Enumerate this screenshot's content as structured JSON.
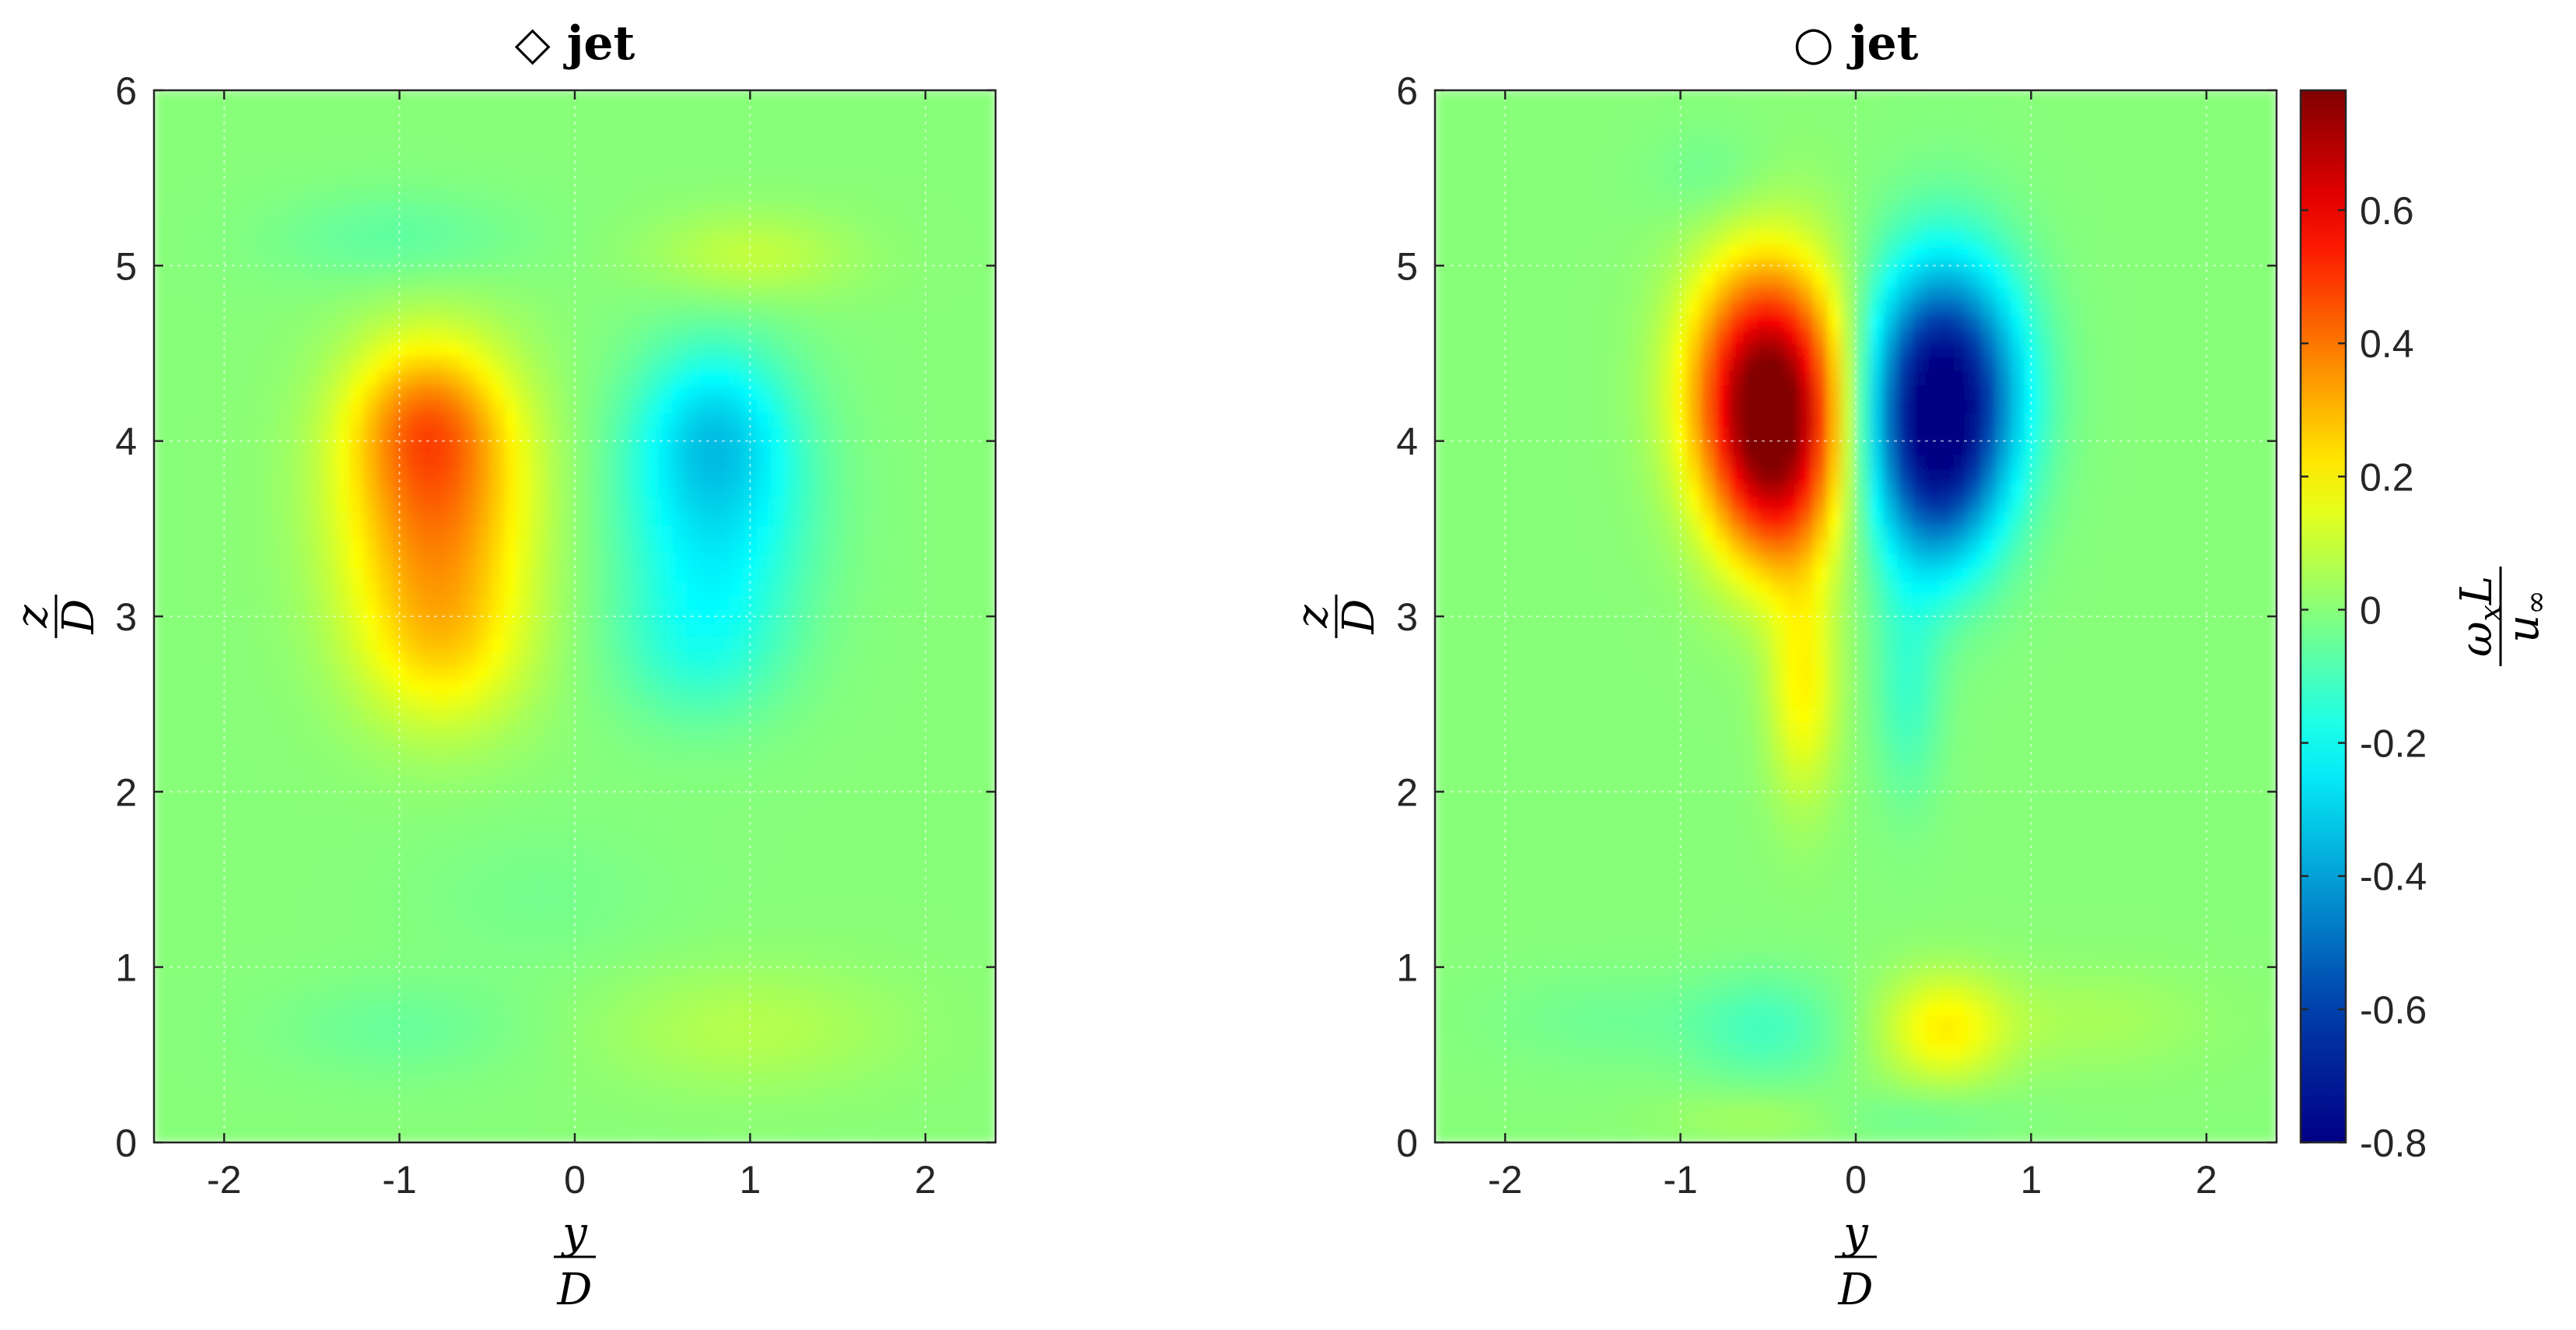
{
  "chart_data": [
    {
      "type": "heatmap",
      "title": "◇ jet",
      "xlabel": {
        "num": "y",
        "den": "D"
      },
      "ylabel": {
        "num": "z",
        "den": "D"
      },
      "xlim": [
        -2.4,
        2.4
      ],
      "ylim": [
        0,
        6
      ],
      "x_ticks": [
        "-2",
        "-1",
        "0",
        "1",
        "2"
      ],
      "y_ticks": [
        "0",
        "1",
        "2",
        "3",
        "4",
        "5",
        "6"
      ],
      "grid": true,
      "features": [
        {
          "y": -0.8,
          "z": 3.65,
          "value": 0.38,
          "sy": 0.38,
          "sz": 0.55
        },
        {
          "y": -0.85,
          "z": 4.15,
          "value": 0.2,
          "sy": 0.3,
          "sz": 0.3
        },
        {
          "y": -0.75,
          "z": 2.8,
          "value": 0.16,
          "sy": 0.35,
          "sz": 0.35
        },
        {
          "y": 0.8,
          "z": 3.65,
          "value": -0.26,
          "sy": 0.38,
          "sz": 0.55
        },
        {
          "y": 0.8,
          "z": 4.1,
          "value": -0.14,
          "sy": 0.28,
          "sz": 0.3
        },
        {
          "y": 0.7,
          "z": 2.8,
          "value": -0.1,
          "sy": 0.35,
          "sz": 0.3
        },
        {
          "y": 1.0,
          "z": 5.05,
          "value": 0.1,
          "sy": 0.4,
          "sz": 0.18
        },
        {
          "y": -1.0,
          "z": 5.15,
          "value": -0.07,
          "sy": 0.5,
          "sz": 0.2
        },
        {
          "y": 1.0,
          "z": 0.65,
          "value": 0.07,
          "sy": 0.6,
          "sz": 0.25
        },
        {
          "y": -1.0,
          "z": 0.65,
          "value": -0.05,
          "sy": 0.5,
          "sz": 0.2
        },
        {
          "y": -0.2,
          "z": 1.4,
          "value": -0.03,
          "sy": 0.5,
          "sz": 0.3
        }
      ]
    },
    {
      "type": "heatmap",
      "title": "○ jet",
      "xlabel": {
        "num": "y",
        "den": "D"
      },
      "ylabel": {
        "num": "z",
        "den": "D"
      },
      "xlim": [
        -2.4,
        2.4
      ],
      "ylim": [
        0,
        6
      ],
      "x_ticks": [
        "-2",
        "-1",
        "0",
        "1",
        "2"
      ],
      "y_ticks": [
        "0",
        "1",
        "2",
        "3",
        "4",
        "5",
        "6"
      ],
      "grid": true,
      "features": [
        {
          "y": -0.5,
          "z": 4.3,
          "value": 0.78,
          "sy": 0.3,
          "sz": 0.5
        },
        {
          "y": -0.45,
          "z": 3.7,
          "value": 0.3,
          "sy": 0.25,
          "sz": 0.4
        },
        {
          "y": -0.3,
          "z": 2.6,
          "value": 0.2,
          "sy": 0.14,
          "sz": 0.45
        },
        {
          "y": 0.5,
          "z": 4.3,
          "value": -0.8,
          "sy": 0.3,
          "sz": 0.5
        },
        {
          "y": 0.45,
          "z": 3.7,
          "value": -0.3,
          "sy": 0.25,
          "sz": 0.4
        },
        {
          "y": 0.3,
          "z": 2.6,
          "value": -0.12,
          "sy": 0.14,
          "sz": 0.45
        },
        {
          "y": 0.5,
          "z": 0.65,
          "value": 0.2,
          "sy": 0.25,
          "sz": 0.22
        },
        {
          "y": 1.3,
          "z": 0.7,
          "value": 0.05,
          "sy": 0.5,
          "sz": 0.2
        },
        {
          "y": -0.5,
          "z": 0.65,
          "value": -0.1,
          "sy": 0.3,
          "sz": 0.22
        },
        {
          "y": -1.4,
          "z": 0.7,
          "value": -0.04,
          "sy": 0.5,
          "sz": 0.2
        },
        {
          "y": 0.3,
          "z": 0.15,
          "value": -0.05,
          "sy": 0.4,
          "sz": 0.1
        },
        {
          "y": -0.5,
          "z": 0.15,
          "value": 0.05,
          "sy": 0.4,
          "sz": 0.1
        },
        {
          "y": -0.8,
          "z": 5.5,
          "value": -0.05,
          "sy": 0.25,
          "sz": 0.2
        }
      ]
    }
  ],
  "colorbar": {
    "label": {
      "num": "ω",
      "num_sub": "x",
      "num_var": "L",
      "den": "u",
      "den_sub": "∞"
    },
    "range": [
      -0.8,
      0.78
    ],
    "ticks": [
      "0.6",
      "0.4",
      "0.2",
      "0",
      "-0.2",
      "-0.4",
      "-0.6",
      "-0.8"
    ],
    "tick_values": [
      0.6,
      0.4,
      0.2,
      0,
      -0.2,
      -0.4,
      -0.6,
      -0.8
    ],
    "colormap": "jet"
  }
}
